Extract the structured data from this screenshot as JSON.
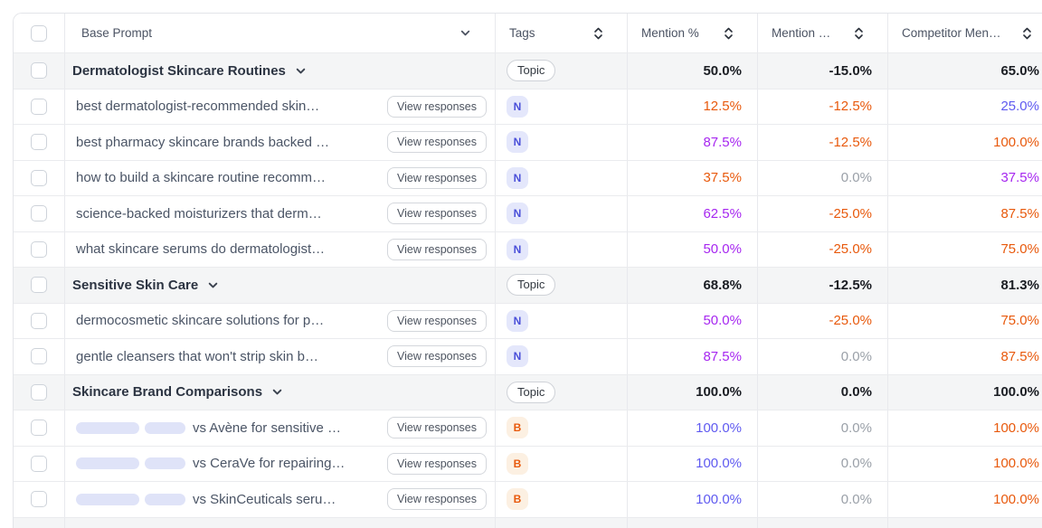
{
  "colors": {
    "orange": "#e8590c",
    "purple": "#a626f0",
    "indigo": "#5f5af0",
    "gray": "#9aa0a8",
    "dark": "#1a1d23",
    "badge_indigo_bg": "#e4e7fb",
    "badge_indigo_text": "#4a4fd9",
    "badge_orange_bg": "#fcf0e2",
    "badge_orange_text": "#e8590c",
    "redacted_pill": "#dfe3f8",
    "group_row_bg": "#f4f5f6"
  },
  "table": {
    "columns": [
      {
        "id": "select",
        "label": "",
        "icon": "none"
      },
      {
        "id": "base_prompt",
        "label": "Base Prompt",
        "icon": "chevron-down"
      },
      {
        "id": "tags",
        "label": "Tags",
        "icon": "sort"
      },
      {
        "id": "mention_pct",
        "label": "Mention %",
        "icon": "sort"
      },
      {
        "id": "mention_delta",
        "label": "Mention …",
        "icon": "sort"
      },
      {
        "id": "competitor_mention",
        "label": "Competitor Men…",
        "icon": "sort"
      }
    ],
    "view_responses_label": "View responses",
    "rows": [
      {
        "type": "group",
        "title": "Dermatologist Skincare Routines",
        "tag": "Topic",
        "mention_pct": "50.0%",
        "mention_delta": "-15.0%",
        "competitor_mention": "65.0%"
      },
      {
        "type": "prompt",
        "text": "best dermatologist-recommended skin…",
        "redacted": false,
        "tag": "N",
        "mention_pct": "12.5%",
        "mention_pct_color": "orange",
        "mention_delta": "-12.5%",
        "mention_delta_color": "orange",
        "competitor_mention": "25.0%",
        "competitor_mention_color": "indigo"
      },
      {
        "type": "prompt",
        "text": "best pharmacy skincare brands backed …",
        "redacted": false,
        "tag": "N",
        "mention_pct": "87.5%",
        "mention_pct_color": "purple",
        "mention_delta": "-12.5%",
        "mention_delta_color": "orange",
        "competitor_mention": "100.0%",
        "competitor_mention_color": "orange"
      },
      {
        "type": "prompt",
        "text": "how to build a skincare routine recomm…",
        "redacted": false,
        "tag": "N",
        "mention_pct": "37.5%",
        "mention_pct_color": "orange",
        "mention_delta": "0.0%",
        "mention_delta_color": "gray",
        "competitor_mention": "37.5%",
        "competitor_mention_color": "purple"
      },
      {
        "type": "prompt",
        "text": "science-backed moisturizers that derm…",
        "redacted": false,
        "tag": "N",
        "mention_pct": "62.5%",
        "mention_pct_color": "purple",
        "mention_delta": "-25.0%",
        "mention_delta_color": "orange",
        "competitor_mention": "87.5%",
        "competitor_mention_color": "orange"
      },
      {
        "type": "prompt",
        "text": "what skincare serums do dermatologist…",
        "redacted": false,
        "tag": "N",
        "mention_pct": "50.0%",
        "mention_pct_color": "purple",
        "mention_delta": "-25.0%",
        "mention_delta_color": "orange",
        "competitor_mention": "75.0%",
        "competitor_mention_color": "orange"
      },
      {
        "type": "group",
        "title": "Sensitive Skin Care",
        "tag": "Topic",
        "mention_pct": "68.8%",
        "mention_delta": "-12.5%",
        "competitor_mention": "81.3%"
      },
      {
        "type": "prompt",
        "text": "dermocosmetic skincare solutions for p…",
        "redacted": false,
        "tag": "N",
        "mention_pct": "50.0%",
        "mention_pct_color": "purple",
        "mention_delta": "-25.0%",
        "mention_delta_color": "orange",
        "competitor_mention": "75.0%",
        "competitor_mention_color": "orange"
      },
      {
        "type": "prompt",
        "text": "gentle cleansers that won't strip skin b…",
        "redacted": false,
        "tag": "N",
        "mention_pct": "87.5%",
        "mention_pct_color": "purple",
        "mention_delta": "0.0%",
        "mention_delta_color": "gray",
        "competitor_mention": "87.5%",
        "competitor_mention_color": "orange"
      },
      {
        "type": "group",
        "title": "Skincare Brand Comparisons",
        "tag": "Topic",
        "mention_pct": "100.0%",
        "mention_delta": "0.0%",
        "competitor_mention": "100.0%"
      },
      {
        "type": "prompt",
        "text": "vs Avène for sensitive …",
        "redacted": true,
        "tag": "B",
        "mention_pct": "100.0%",
        "mention_pct_color": "indigo",
        "mention_delta": "0.0%",
        "mention_delta_color": "gray",
        "competitor_mention": "100.0%",
        "competitor_mention_color": "orange"
      },
      {
        "type": "prompt",
        "text": "vs CeraVe for repairing…",
        "redacted": true,
        "tag": "B",
        "mention_pct": "100.0%",
        "mention_pct_color": "indigo",
        "mention_delta": "0.0%",
        "mention_delta_color": "gray",
        "competitor_mention": "100.0%",
        "competitor_mention_color": "orange"
      },
      {
        "type": "prompt",
        "text": "vs SkinCeuticals seru…",
        "redacted": true,
        "tag": "B",
        "mention_pct": "100.0%",
        "mention_pct_color": "indigo",
        "mention_delta": "0.0%",
        "mention_delta_color": "gray",
        "competitor_mention": "100.0%",
        "competitor_mention_color": "orange"
      },
      {
        "type": "partial"
      }
    ]
  }
}
